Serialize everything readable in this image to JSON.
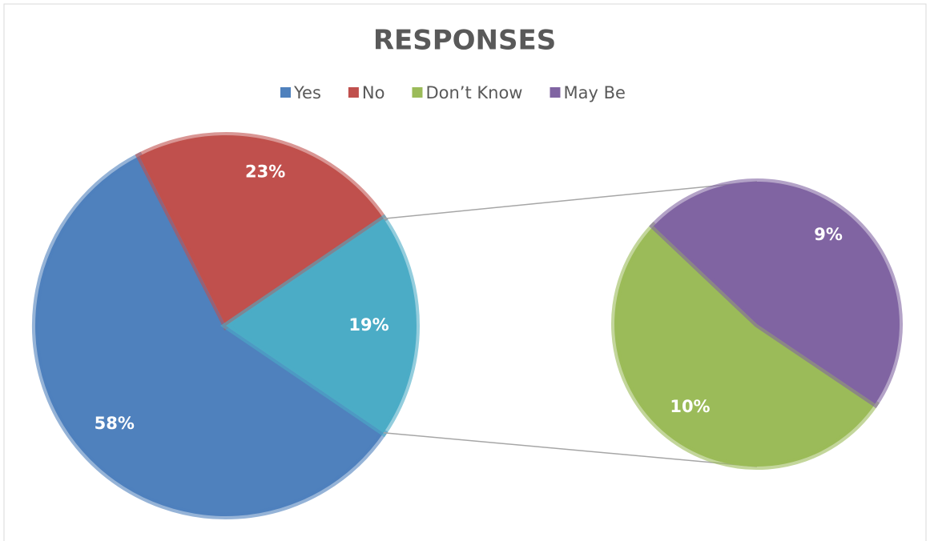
{
  "chart_data": {
    "type": "pie-of-pie",
    "title": "RESPONSES",
    "categories": [
      "Yes",
      "No",
      "Don’t Know",
      "May Be"
    ],
    "values": [
      58,
      23,
      10,
      9
    ],
    "value_labels": [
      "58%",
      "23%",
      "10%",
      "9%"
    ],
    "colors": [
      "#4f81bd",
      "#c0504d",
      "#9bbb59",
      "#8064a2"
    ],
    "secondary": {
      "value": 19,
      "value_label": "19%",
      "color": "#4bacc6"
    },
    "legend": "top"
  }
}
